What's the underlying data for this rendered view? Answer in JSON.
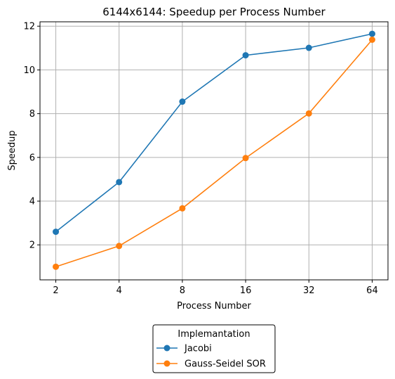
{
  "chart_data": {
    "type": "line",
    "title": "6144x6144: Speedup per Process Number",
    "xlabel": "Process Number",
    "ylabel": "Speedup",
    "x_scale": "log2",
    "categories": [
      "2",
      "4",
      "8",
      "16",
      "32",
      "64"
    ],
    "x": [
      2,
      4,
      8,
      16,
      32,
      64
    ],
    "ylim": [
      0.4,
      12.2
    ],
    "yticks": [
      2,
      4,
      6,
      8,
      10,
      12
    ],
    "grid": true,
    "legend": {
      "title": "Implemantation",
      "placement": "below plot, centered"
    },
    "series": [
      {
        "name": "Jacobi",
        "color": "#1f77b4",
        "marker": "circle",
        "values": [
          2.6,
          4.87,
          8.55,
          10.67,
          11.01,
          11.65
        ]
      },
      {
        "name": "Gauss-Seidel SOR",
        "color": "#ff7f0e",
        "marker": "circle",
        "values": [
          1.0,
          1.95,
          3.67,
          5.97,
          8.01,
          11.38
        ]
      }
    ]
  }
}
